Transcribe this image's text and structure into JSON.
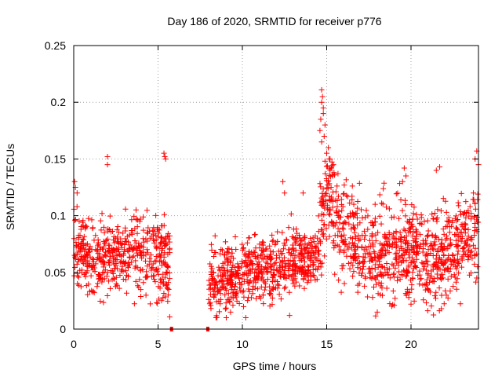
{
  "chart_data": {
    "type": "scatter",
    "title": "Day 186 of 2020, SRMTID for receiver p776",
    "xlabel": "GPS time / hours",
    "ylabel": "SRMTID / TECUs",
    "xlim": [
      0,
      24
    ],
    "ylim": [
      0,
      0.25
    ],
    "x_ticks": [
      0,
      5,
      10,
      15,
      20
    ],
    "x_tick_labels": [
      "0",
      "5",
      "10",
      "15",
      "20"
    ],
    "y_ticks": [
      0,
      0.05,
      0.1,
      0.15,
      0.2,
      0.25
    ],
    "y_tick_labels": [
      "0",
      "0.05",
      "0.1",
      "0.15",
      "0.2",
      "0.25"
    ],
    "grid": true,
    "marker": "+",
    "color": "#ff0000",
    "segments": [
      {
        "x_start": 0.0,
        "x_end": 5.7,
        "n": 520,
        "profile": [
          [
            0,
            0.075
          ],
          [
            0.5,
            0.07
          ],
          [
            1.5,
            0.06
          ],
          [
            2.5,
            0.065
          ],
          [
            3.5,
            0.07
          ],
          [
            4.5,
            0.065
          ],
          [
            5.7,
            0.06
          ]
        ],
        "spread": 0.018
      },
      {
        "x_start": 8.0,
        "x_end": 14.6,
        "n": 620,
        "profile": [
          [
            8,
            0.04
          ],
          [
            9,
            0.045
          ],
          [
            10,
            0.05
          ],
          [
            11,
            0.055
          ],
          [
            12,
            0.055
          ],
          [
            13,
            0.06
          ],
          [
            14,
            0.06
          ],
          [
            14.6,
            0.07
          ]
        ],
        "spread": 0.014
      },
      {
        "x_start": 14.6,
        "x_end": 24.0,
        "n": 900,
        "profile": [
          [
            14.6,
            0.09
          ],
          [
            15,
            0.12
          ],
          [
            15.5,
            0.1
          ],
          [
            16,
            0.085
          ],
          [
            17,
            0.075
          ],
          [
            18,
            0.065
          ],
          [
            19,
            0.07
          ],
          [
            20,
            0.07
          ],
          [
            21,
            0.065
          ],
          [
            22,
            0.065
          ],
          [
            23,
            0.075
          ],
          [
            24,
            0.085
          ]
        ],
        "spread": 0.022
      }
    ],
    "highlights": [
      {
        "x": 0.05,
        "y": 0.13
      },
      {
        "x": 0.1,
        "y": 0.125
      },
      {
        "x": 0.2,
        "y": 0.12
      },
      {
        "x": 2.0,
        "y": 0.152
      },
      {
        "x": 2.0,
        "y": 0.145
      },
      {
        "x": 5.35,
        "y": 0.155
      },
      {
        "x": 5.4,
        "y": 0.152
      },
      {
        "x": 5.45,
        "y": 0.15
      },
      {
        "x": 5.3,
        "y": 0.04
      },
      {
        "x": 5.6,
        "y": 0.03
      },
      {
        "x": 5.55,
        "y": 0.055
      },
      {
        "x": 12.4,
        "y": 0.13
      },
      {
        "x": 12.5,
        "y": 0.12
      },
      {
        "x": 13.6,
        "y": 0.12
      },
      {
        "x": 14.7,
        "y": 0.211
      },
      {
        "x": 14.75,
        "y": 0.205
      },
      {
        "x": 14.7,
        "y": 0.2
      },
      {
        "x": 14.8,
        "y": 0.195
      },
      {
        "x": 14.8,
        "y": 0.19
      },
      {
        "x": 14.65,
        "y": 0.185
      },
      {
        "x": 14.9,
        "y": 0.18
      },
      {
        "x": 14.6,
        "y": 0.175
      },
      {
        "x": 14.85,
        "y": 0.17
      },
      {
        "x": 14.7,
        "y": 0.165
      },
      {
        "x": 15.1,
        "y": 0.16
      },
      {
        "x": 15.0,
        "y": 0.155
      },
      {
        "x": 15.2,
        "y": 0.15
      },
      {
        "x": 14.9,
        "y": 0.148
      },
      {
        "x": 15.4,
        "y": 0.145
      },
      {
        "x": 15.2,
        "y": 0.14
      },
      {
        "x": 15.35,
        "y": 0.135
      },
      {
        "x": 19.6,
        "y": 0.142
      },
      {
        "x": 19.7,
        "y": 0.135
      },
      {
        "x": 19.5,
        "y": 0.13
      },
      {
        "x": 21.7,
        "y": 0.143
      },
      {
        "x": 21.5,
        "y": 0.14
      },
      {
        "x": 23.9,
        "y": 0.157
      },
      {
        "x": 23.8,
        "y": 0.15
      },
      {
        "x": 24.0,
        "y": 0.145
      },
      {
        "x": 23.7,
        "y": 0.12
      },
      {
        "x": 23.9,
        "y": 0.045
      },
      {
        "x": 23.95,
        "y": 0.055
      },
      {
        "x": 9.3,
        "y": 0.015
      },
      {
        "x": 10.2,
        "y": 0.01
      },
      {
        "x": 12.8,
        "y": 0.012
      },
      {
        "x": 18.0,
        "y": 0.015
      },
      {
        "x": 20.0,
        "y": 0.022
      },
      {
        "x": 21.8,
        "y": 0.018
      }
    ],
    "zero_markers": [
      {
        "x": 5.8,
        "y": 0
      },
      {
        "x": 7.95,
        "y": 0
      }
    ]
  }
}
